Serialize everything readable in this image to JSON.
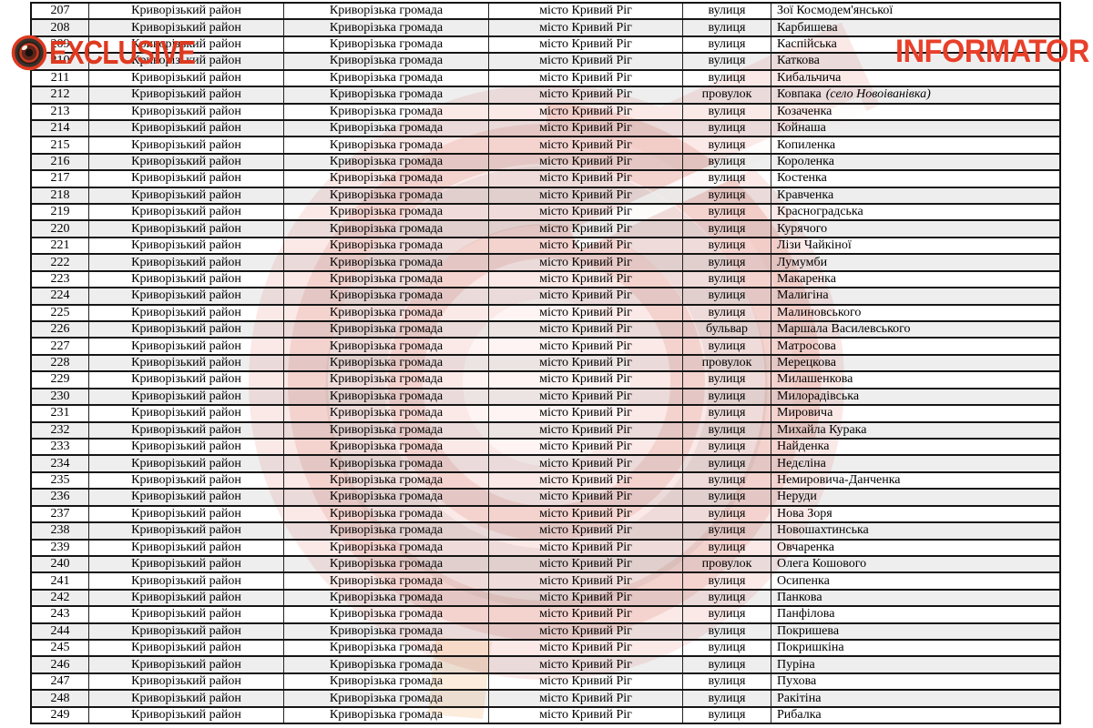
{
  "watermark": {
    "exclusive_label": "EXCLUSIVE",
    "informator_label": "INFORMATOR",
    "badge_color": "#de3a20",
    "circle_color": "#fbe9e7",
    "ring_color": "#f4d3cf",
    "lens_icon": "camera-lens-icon"
  },
  "table": {
    "district": "Криворізький район",
    "hromada": "Криворізька громада",
    "city": "місто Кривий Ріг",
    "rows": [
      {
        "num": "207",
        "type": "вулиця",
        "name": "Зої Космодем'янської",
        "note": ""
      },
      {
        "num": "208",
        "type": "вулиця",
        "name": "Карбишева",
        "note": ""
      },
      {
        "num": "209",
        "type": "вулиця",
        "name": "Каспійська",
        "note": ""
      },
      {
        "num": "210",
        "type": "вулиця",
        "name": "Каткова",
        "note": ""
      },
      {
        "num": "211",
        "type": "вулиця",
        "name": "Кибальчича",
        "note": ""
      },
      {
        "num": "212",
        "type": "провулок",
        "name": "Ковпака",
        "note": "(село Новоіванівка)"
      },
      {
        "num": "213",
        "type": "вулиця",
        "name": "Козаченка",
        "note": ""
      },
      {
        "num": "214",
        "type": "вулиця",
        "name": "Койнаша",
        "note": ""
      },
      {
        "num": "215",
        "type": "вулиця",
        "name": "Копиленка",
        "note": ""
      },
      {
        "num": "216",
        "type": "вулиця",
        "name": "Короленка",
        "note": ""
      },
      {
        "num": "217",
        "type": "вулиця",
        "name": "Костенка",
        "note": ""
      },
      {
        "num": "218",
        "type": "вулиця",
        "name": "Кравченка",
        "note": ""
      },
      {
        "num": "219",
        "type": "вулиця",
        "name": "Красноградська",
        "note": ""
      },
      {
        "num": "220",
        "type": "вулиця",
        "name": "Курячого",
        "note": ""
      },
      {
        "num": "221",
        "type": "вулиця",
        "name": "Лізи Чайкіної",
        "note": ""
      },
      {
        "num": "222",
        "type": "вулиця",
        "name": "Лумумби",
        "note": ""
      },
      {
        "num": "223",
        "type": "вулиця",
        "name": "Макаренка",
        "note": ""
      },
      {
        "num": "224",
        "type": "вулиця",
        "name": "Малигіна",
        "note": ""
      },
      {
        "num": "225",
        "type": "вулиця",
        "name": "Малиновського",
        "note": ""
      },
      {
        "num": "226",
        "type": "бульвар",
        "name": "Маршала Василевського",
        "note": ""
      },
      {
        "num": "227",
        "type": "вулиця",
        "name": "Матросова",
        "note": ""
      },
      {
        "num": "228",
        "type": "провулок",
        "name": "Мерецкова",
        "note": ""
      },
      {
        "num": "229",
        "type": "вулиця",
        "name": "Милашенкова",
        "note": ""
      },
      {
        "num": "230",
        "type": "вулиця",
        "name": "Милорадівська",
        "note": ""
      },
      {
        "num": "231",
        "type": "вулиця",
        "name": "Мировича",
        "note": ""
      },
      {
        "num": "232",
        "type": "вулиця",
        "name": "Михайла Курака",
        "note": ""
      },
      {
        "num": "233",
        "type": "вулиця",
        "name": "Найденка",
        "note": ""
      },
      {
        "num": "234",
        "type": "вулиця",
        "name": "Недєліна",
        "note": ""
      },
      {
        "num": "235",
        "type": "вулиця",
        "name": "Немировича-Данченка",
        "note": ""
      },
      {
        "num": "236",
        "type": "вулиця",
        "name": "Неруди",
        "note": ""
      },
      {
        "num": "237",
        "type": "вулиця",
        "name": "Нова Зоря",
        "note": ""
      },
      {
        "num": "238",
        "type": "вулиця",
        "name": "Новошахтинська",
        "note": ""
      },
      {
        "num": "239",
        "type": "вулиця",
        "name": "Овчаренка",
        "note": ""
      },
      {
        "num": "240",
        "type": "провулок",
        "name": "Олега Кошового",
        "note": ""
      },
      {
        "num": "241",
        "type": "вулиця",
        "name": "Осипенка",
        "note": ""
      },
      {
        "num": "242",
        "type": "вулиця",
        "name": "Панкова",
        "note": ""
      },
      {
        "num": "243",
        "type": "вулиця",
        "name": "Панфілова",
        "note": ""
      },
      {
        "num": "244",
        "type": "вулиця",
        "name": "Покришева",
        "note": ""
      },
      {
        "num": "245",
        "type": "вулиця",
        "name": "Покришкіна",
        "note": ""
      },
      {
        "num": "246",
        "type": "вулиця",
        "name": "Пуріна",
        "note": ""
      },
      {
        "num": "247",
        "type": "вулиця",
        "name": "Пухова",
        "note": ""
      },
      {
        "num": "248",
        "type": "вулиця",
        "name": "Ракітіна",
        "note": ""
      },
      {
        "num": "249",
        "type": "вулиця",
        "name": "Рибалка",
        "note": ""
      }
    ]
  }
}
